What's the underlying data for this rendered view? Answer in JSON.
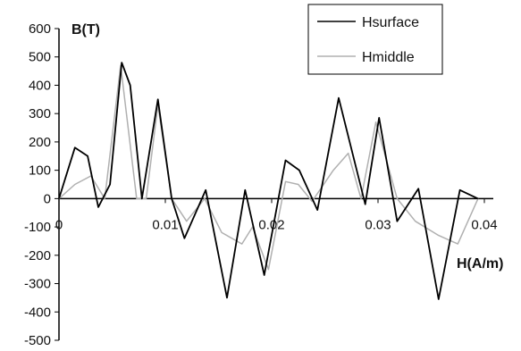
{
  "chart_data": {
    "type": "line",
    "ylabel": "B(T)",
    "xlabel": "H(A/m)",
    "xlim": [
      0,
      0.04
    ],
    "ylim": [
      -500,
      600
    ],
    "x_ticks": [
      "0",
      "0.01",
      "0.02",
      "0.03",
      "0.04"
    ],
    "y_ticks": [
      "600",
      "500",
      "400",
      "300",
      "200",
      "100",
      "0",
      "-100",
      "-200",
      "-300",
      "-400",
      "-500"
    ],
    "legend": "top-right",
    "series": [
      {
        "name": "Hsurface",
        "color": "#000000",
        "x": [
          0,
          0.0015,
          0.0027,
          0.0037,
          0.0048,
          0.0059,
          0.0067,
          0.0078,
          0.0093,
          0.0106,
          0.0118,
          0.0138,
          0.0158,
          0.0175,
          0.0193,
          0.0213,
          0.0226,
          0.0243,
          0.0263,
          0.0288,
          0.0301,
          0.0318,
          0.0338,
          0.0357,
          0.0377,
          0.0394
        ],
        "y": [
          0,
          180,
          150,
          -30,
          50,
          480,
          400,
          0,
          350,
          0,
          -140,
          30,
          -350,
          30,
          -270,
          135,
          100,
          -40,
          355,
          -20,
          285,
          -80,
          35,
          -355,
          30,
          0
        ]
      },
      {
        "name": "Hmiddle",
        "color": "#b0b0b0",
        "x": [
          0,
          0.0015,
          0.003,
          0.0043,
          0.0058,
          0.0073,
          0.0082,
          0.0093,
          0.0106,
          0.012,
          0.0137,
          0.0153,
          0.0172,
          0.0182,
          0.0197,
          0.0213,
          0.0225,
          0.0238,
          0.0258,
          0.0272,
          0.0284,
          0.0298,
          0.0318,
          0.0335,
          0.0357,
          0.0375,
          0.0394
        ],
        "y": [
          0,
          50,
          80,
          0,
          470,
          0,
          0,
          330,
          0,
          -80,
          0,
          -120,
          -160,
          -100,
          -250,
          60,
          50,
          -10,
          100,
          160,
          0,
          270,
          0,
          -80,
          -130,
          -160,
          0
        ]
      }
    ]
  }
}
